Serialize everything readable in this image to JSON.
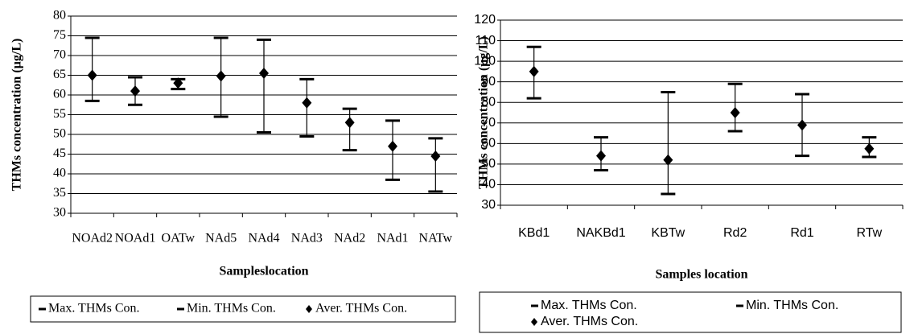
{
  "chart_data": [
    {
      "type": "range",
      "y_label": "THMs concentration (µg/L)",
      "x_label": "Sampleslocation",
      "categories": [
        "NOAd2",
        "NOAd1",
        "OATw",
        "NAd5",
        "NAd4",
        "NAd3",
        "NAd2",
        "NAd1",
        "NATw"
      ],
      "series": [
        {
          "name": "Max. THMs Con.",
          "color": "#000000",
          "values": [
            74.5,
            64.5,
            64,
            74.5,
            74,
            64,
            56.5,
            53.5,
            49
          ]
        },
        {
          "name": "Min. THMs Con.",
          "color": "#000000",
          "values": [
            58.5,
            57.5,
            61.5,
            54.5,
            50.5,
            49.5,
            46,
            38.5,
            35.5
          ]
        },
        {
          "name": "Aver. THMs Con.",
          "color": "#000000",
          "values": [
            65,
            61,
            63,
            64.8,
            65.5,
            58,
            53,
            47,
            44.5
          ]
        }
      ],
      "ylim": [
        30,
        80
      ],
      "yticks": [
        30,
        35,
        40,
        45,
        50,
        55,
        60,
        65,
        70,
        75,
        80
      ],
      "grid": true
    },
    {
      "type": "range",
      "y_label": "THMs concentration (µg/L)",
      "x_label": "Samples location",
      "categories": [
        "KBd1",
        "NAKBd1",
        "KBTw",
        "Rd2",
        "Rd1",
        "RTw"
      ],
      "series": [
        {
          "name": "Max. THMs Con.",
          "color": "#000000",
          "values": [
            107,
            63,
            85,
            89,
            84,
            63
          ]
        },
        {
          "name": "Min. THMs Con.",
          "color": "#000000",
          "values": [
            82,
            47,
            35.5,
            66,
            54,
            53.5
          ]
        },
        {
          "name": "Aver. THMs Con.",
          "color": "#000000",
          "values": [
            95,
            54,
            52,
            75,
            69,
            57.5
          ]
        }
      ],
      "ylim": [
        30,
        120
      ],
      "yticks": [
        30,
        40,
        50,
        60,
        70,
        80,
        90,
        100,
        110,
        120
      ],
      "grid": true
    }
  ]
}
